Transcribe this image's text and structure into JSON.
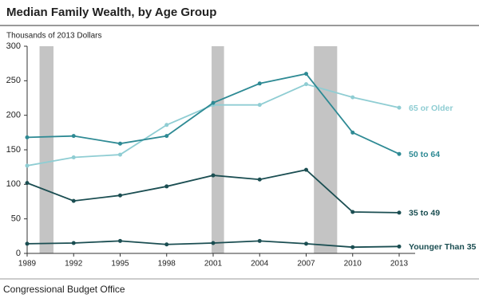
{
  "chart_data": {
    "type": "line",
    "title": "Median Family Wealth, by Age Group",
    "subtitle": "Thousands of 2013 Dollars",
    "source": "Congressional Budget Office",
    "x": [
      1989,
      1992,
      1995,
      1998,
      2001,
      2004,
      2007,
      2010,
      2013
    ],
    "xlim": [
      1989,
      2013
    ],
    "xticks": [
      1989,
      1992,
      1995,
      1998,
      2001,
      2004,
      2007,
      2010,
      2013
    ],
    "ylim": [
      0,
      300
    ],
    "yticks": [
      0,
      50,
      100,
      150,
      200,
      250,
      300
    ],
    "shaded_periods": [
      [
        1989.8,
        1990.7
      ],
      [
        2000.9,
        2001.7
      ],
      [
        2007.5,
        2009
      ]
    ],
    "shade_color": "#c4c4c4",
    "series": [
      {
        "name": "65 or Older",
        "color": "#8fcdd3",
        "values": [
          127,
          139,
          143,
          186,
          215,
          215,
          245,
          226,
          211
        ]
      },
      {
        "name": "50 to 64",
        "color": "#2e8a94",
        "values": [
          168,
          170,
          159,
          170,
          218,
          246,
          260,
          175,
          144
        ]
      },
      {
        "name": "35 to 49",
        "color": "#1b4e52",
        "values": [
          102,
          76,
          84,
          97,
          113,
          107,
          121,
          60,
          59
        ]
      },
      {
        "name": "Younger Than 35",
        "color": "#1b4e52",
        "values": [
          14,
          15,
          18,
          13,
          15,
          18,
          14,
          9,
          10
        ]
      }
    ]
  }
}
